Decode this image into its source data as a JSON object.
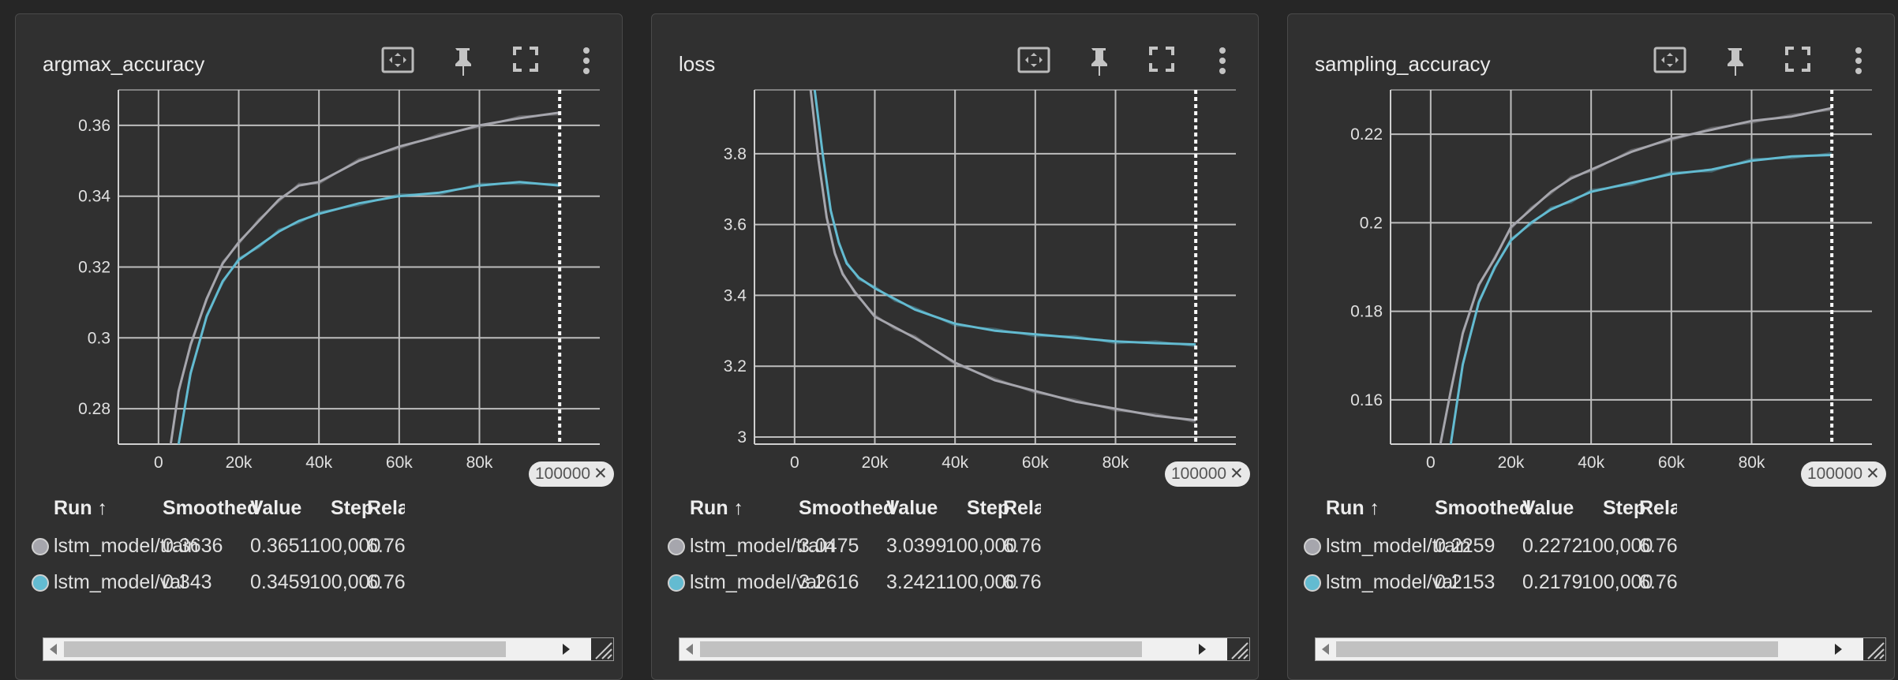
{
  "colors": {
    "train": "#a6a6ad",
    "val": "#63bbd1",
    "grid": "#bdbdbd"
  },
  "table_headers": {
    "run": "Run ↑",
    "smoothed": "Smoothed",
    "value": "Value",
    "step": "Step",
    "relative": "Relative"
  },
  "panels": [
    {
      "title": "argmax_accuracy",
      "chip": "100000",
      "chart_data": {
        "type": "line",
        "title": "argmax_accuracy",
        "xlim": [
          -10000,
          110000
        ],
        "ylim": [
          0.27,
          0.37
        ],
        "x_ticks": [
          0,
          20000,
          40000,
          60000,
          80000
        ],
        "x_tick_labels": [
          "0",
          "20k",
          "40k",
          "60k",
          "80k"
        ],
        "y_ticks": [
          0.28,
          0.3,
          0.32,
          0.34,
          0.36
        ],
        "y_tick_labels": [
          "0.28",
          "0.3",
          "0.32",
          "0.34",
          "0.36"
        ],
        "grid": true,
        "cursor_step": 100000,
        "series": [
          {
            "name": "lstm_model/train",
            "x": [
              2000,
              5000,
              8000,
              12000,
              16000,
              20000,
              25000,
              30000,
              35000,
              40000,
              50000,
              60000,
              70000,
              80000,
              90000,
              100000
            ],
            "values": [
              0.262,
              0.285,
              0.298,
              0.311,
              0.321,
              0.327,
              0.333,
              0.339,
              0.343,
              0.344,
              0.35,
              0.354,
              0.357,
              0.36,
              0.362,
              0.3636
            ]
          },
          {
            "name": "lstm_model/val",
            "x": [
              5000,
              8000,
              12000,
              16000,
              20000,
              25000,
              30000,
              35000,
              40000,
              50000,
              60000,
              70000,
              80000,
              90000,
              100000
            ],
            "values": [
              0.27,
              0.29,
              0.306,
              0.316,
              0.322,
              0.326,
              0.33,
              0.333,
              0.335,
              0.338,
              0.34,
              0.341,
              0.343,
              0.344,
              0.343
            ]
          }
        ]
      },
      "rows": [
        {
          "run": "lstm_model/train",
          "smoothed": "0.3636",
          "value": "0.3651",
          "step": "100,000",
          "relative": "6.76"
        },
        {
          "run": "lstm_model/val",
          "smoothed": "0.343",
          "value": "0.3459",
          "step": "100,000",
          "relative": "6.76"
        }
      ]
    },
    {
      "title": "loss",
      "chip": "100000",
      "chart_data": {
        "type": "line",
        "title": "loss",
        "xlim": [
          -10000,
          110000
        ],
        "ylim": [
          2.98,
          3.98
        ],
        "x_ticks": [
          0,
          20000,
          40000,
          60000,
          80000
        ],
        "x_tick_labels": [
          "0",
          "20k",
          "40k",
          "60k",
          "80k"
        ],
        "y_ticks": [
          3.0,
          3.2,
          3.4,
          3.6,
          3.8
        ],
        "y_tick_labels": [
          "3",
          "3.2",
          "3.4",
          "3.6",
          "3.8"
        ],
        "grid": true,
        "cursor_step": 100000,
        "series": [
          {
            "name": "lstm_model/train",
            "x": [
              4000,
              6000,
              8000,
              10000,
              12000,
              15000,
              20000,
              25000,
              30000,
              40000,
              50000,
              60000,
              70000,
              80000,
              90000,
              100000
            ],
            "values": [
              3.98,
              3.78,
              3.62,
              3.52,
              3.46,
              3.41,
              3.34,
              3.31,
              3.28,
              3.21,
              3.16,
              3.13,
              3.1,
              3.08,
              3.06,
              3.0475
            ]
          },
          {
            "name": "lstm_model/val",
            "x": [
              5000,
              7000,
              9000,
              11000,
              13000,
              16000,
              20000,
              25000,
              30000,
              40000,
              50000,
              60000,
              70000,
              80000,
              90000,
              100000
            ],
            "values": [
              3.98,
              3.8,
              3.64,
              3.55,
              3.49,
              3.45,
              3.42,
              3.39,
              3.36,
              3.32,
              3.3,
              3.29,
              3.28,
              3.27,
              3.265,
              3.2616
            ]
          }
        ]
      },
      "rows": [
        {
          "run": "lstm_model/train",
          "smoothed": "3.0475",
          "value": "3.0399",
          "step": "100,000",
          "relative": "6.76"
        },
        {
          "run": "lstm_model/val",
          "smoothed": "3.2616",
          "value": "3.2421",
          "step": "100,000",
          "relative": "6.76"
        }
      ]
    },
    {
      "title": "sampling_accuracy",
      "chip": "100000",
      "chart_data": {
        "type": "line",
        "title": "sampling_accuracy",
        "xlim": [
          -10000,
          110000
        ],
        "ylim": [
          0.15,
          0.23
        ],
        "x_ticks": [
          0,
          20000,
          40000,
          60000,
          80000
        ],
        "x_tick_labels": [
          "0",
          "20k",
          "40k",
          "60k",
          "80k"
        ],
        "y_ticks": [
          0.16,
          0.18,
          0.2,
          0.22
        ],
        "y_tick_labels": [
          "0.16",
          "0.18",
          "0.2",
          "0.22"
        ],
        "grid": true,
        "cursor_step": 100000,
        "series": [
          {
            "name": "lstm_model/train",
            "x": [
              2000,
              5000,
              8000,
              12000,
              16000,
              20000,
              25000,
              30000,
              35000,
              40000,
              50000,
              60000,
              70000,
              80000,
              90000,
              100000
            ],
            "values": [
              0.148,
              0.162,
              0.175,
              0.186,
              0.192,
              0.199,
              0.203,
              0.207,
              0.21,
              0.212,
              0.216,
              0.219,
              0.221,
              0.223,
              0.224,
              0.2259
            ]
          },
          {
            "name": "lstm_model/val",
            "x": [
              5000,
              8000,
              12000,
              16000,
              20000,
              25000,
              30000,
              35000,
              40000,
              50000,
              60000,
              70000,
              80000,
              90000,
              100000
            ],
            "values": [
              0.15,
              0.168,
              0.182,
              0.19,
              0.196,
              0.2,
              0.203,
              0.205,
              0.207,
              0.209,
              0.211,
              0.212,
              0.214,
              0.215,
              0.2153
            ]
          }
        ]
      },
      "rows": [
        {
          "run": "lstm_model/train",
          "smoothed": "0.2259",
          "value": "0.2272",
          "step": "100,000",
          "relative": "6.76"
        },
        {
          "run": "lstm_model/val",
          "smoothed": "0.2153",
          "value": "0.2179",
          "step": "100,000",
          "relative": "6.76"
        }
      ]
    }
  ]
}
